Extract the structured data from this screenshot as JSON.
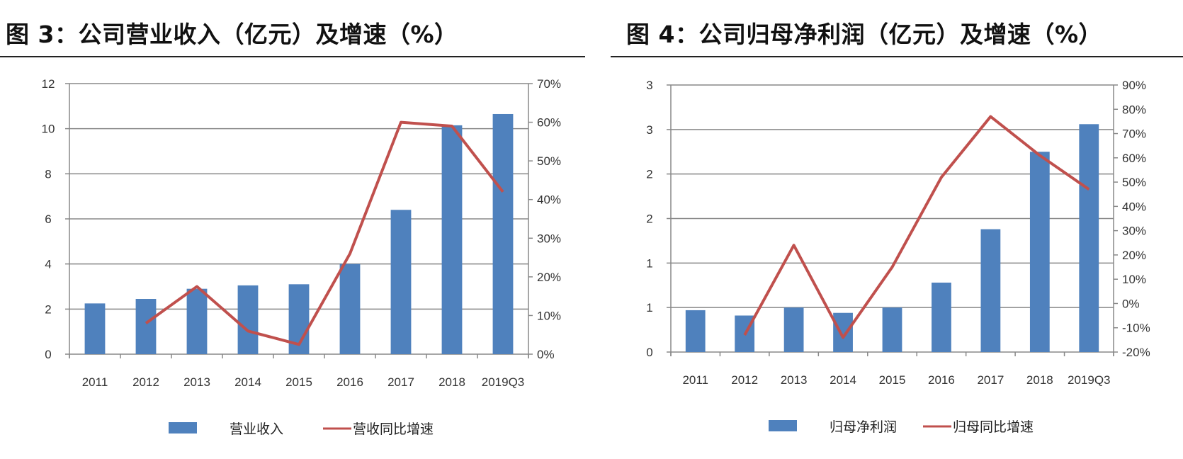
{
  "chart_data": [
    {
      "type": "bar+line",
      "title": "图 3：公司营业收入（亿元）及增速（%）",
      "categories": [
        "2011",
        "2012",
        "2013",
        "2014",
        "2015",
        "2016",
        "2017",
        "2018",
        "2019Q3"
      ],
      "left_axis": {
        "ylim": [
          0,
          12
        ],
        "ticks": [
          "0",
          "2",
          "4",
          "6",
          "8",
          "10",
          "12"
        ],
        "tick_values": [
          0,
          2,
          4,
          6,
          8,
          10,
          12
        ]
      },
      "right_axis": {
        "ylim": [
          0,
          70
        ],
        "ticks": [
          "0%",
          "10%",
          "20%",
          "30%",
          "40%",
          "50%",
          "60%",
          "70%"
        ],
        "tick_values": [
          0,
          10,
          20,
          30,
          40,
          50,
          60,
          70
        ]
      },
      "grid": true,
      "legend_placement": "bottom",
      "series": [
        {
          "name": "营业收入",
          "type": "bar",
          "axis": "left",
          "color": "#4f81bd",
          "values": [
            2.25,
            2.45,
            2.9,
            3.05,
            3.1,
            4.0,
            6.4,
            10.15,
            10.65
          ]
        },
        {
          "name": "营收同比增速",
          "type": "line",
          "axis": "right",
          "color": "#c0504d",
          "values": [
            null,
            8,
            17.5,
            6,
            2.5,
            26,
            60,
            59,
            42
          ]
        }
      ]
    },
    {
      "type": "bar+line",
      "title": "图 4：公司归母净利润（亿元）及增速（%）",
      "categories": [
        "2011",
        "2012",
        "2013",
        "2014",
        "2015",
        "2016",
        "2017",
        "2018",
        "2019Q3"
      ],
      "left_axis": {
        "ylim": [
          0,
          3
        ],
        "ticks": [
          "0",
          "1",
          "1",
          "2",
          "2",
          "3",
          "3"
        ],
        "tick_values": [
          0,
          0.5,
          1,
          1.5,
          2,
          2.5,
          3
        ]
      },
      "right_axis": {
        "ylim": [
          -20,
          90
        ],
        "ticks": [
          "-20%",
          "-10%",
          "0%",
          "10%",
          "20%",
          "30%",
          "40%",
          "50%",
          "60%",
          "70%",
          "80%",
          "90%"
        ],
        "tick_values": [
          -20,
          -10,
          0,
          10,
          20,
          30,
          40,
          50,
          60,
          70,
          80,
          90
        ]
      },
      "grid": true,
      "legend_placement": "bottom",
      "series": [
        {
          "name": "归母净利润",
          "type": "bar",
          "axis": "left",
          "color": "#4f81bd",
          "values": [
            0.47,
            0.41,
            0.5,
            0.44,
            0.5,
            0.78,
            1.38,
            2.25,
            2.56
          ]
        },
        {
          "name": "归母同比增速",
          "type": "line",
          "axis": "right",
          "color": "#c0504d",
          "values": [
            null,
            -13,
            24,
            -14,
            15,
            52,
            77,
            61,
            47
          ]
        }
      ]
    }
  ]
}
